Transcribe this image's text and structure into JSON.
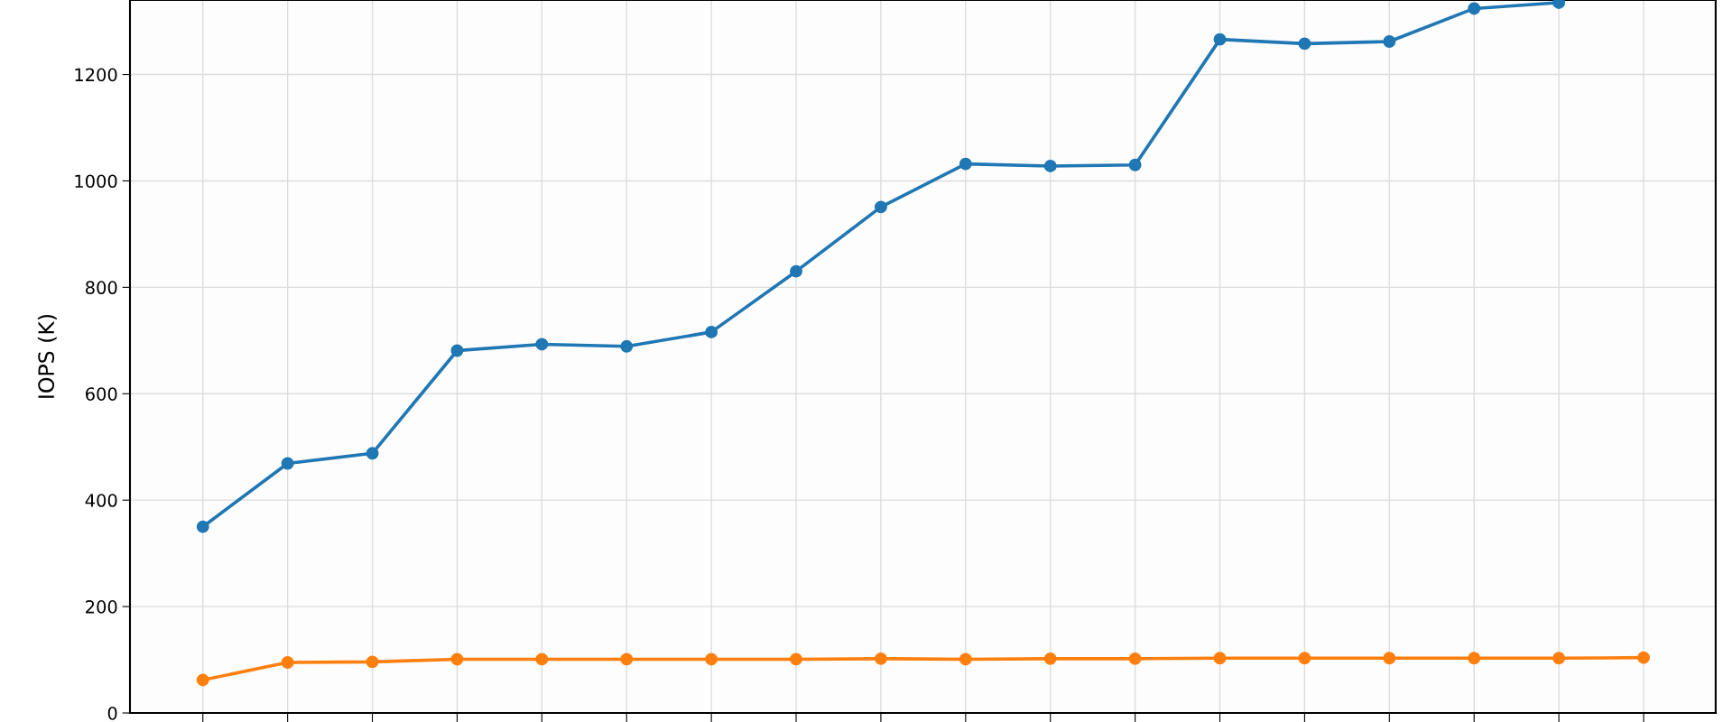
{
  "chart_data": {
    "type": "line",
    "ylabel": "IOPS (K)",
    "categories": [
      null,
      null,
      null,
      null,
      null,
      null,
      null,
      null,
      null,
      null,
      null,
      null,
      null,
      null,
      null,
      null,
      null,
      null
    ],
    "series": [
      {
        "color": "#1f77b4",
        "values": [
          350,
          469,
          488,
          681,
          693,
          689,
          716,
          830,
          951,
          1032,
          1028,
          1030,
          1266,
          1258,
          1262,
          1324,
          1335,
          null
        ]
      },
      {
        "color": "#ff7f0e",
        "values": [
          62,
          95,
          96,
          101,
          101,
          101,
          101,
          101,
          102,
          101,
          102,
          102,
          103,
          103,
          103,
          103,
          103,
          104
        ]
      }
    ],
    "ylim": [
      0,
      1340
    ],
    "yticks": [
      0,
      200,
      400,
      600,
      800,
      1000,
      1200
    ],
    "grid": true,
    "marker": "circle",
    "line_style": "solid"
  }
}
